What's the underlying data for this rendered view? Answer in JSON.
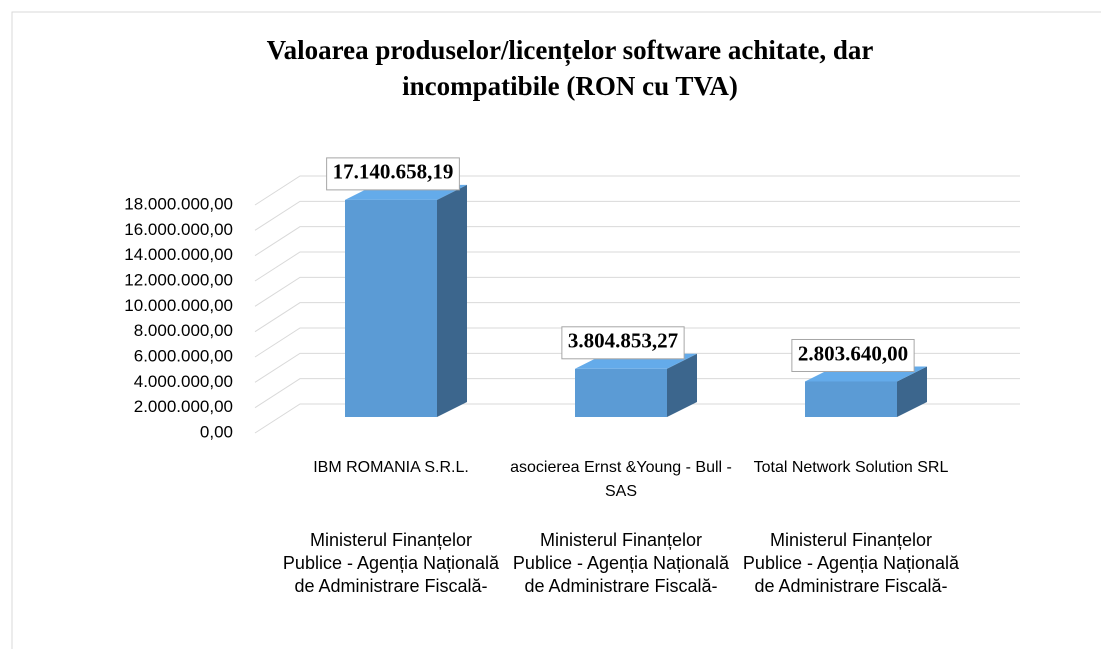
{
  "chart_data": {
    "type": "bar",
    "title": "Valoarea produselor/licențelor software achitate, dar incompatibile (RON cu TVA)",
    "categories": [
      "IBM ROMANIA S.R.L.",
      "asocierea Ernst &Young - Bull - SAS",
      "Total Network Solution SRL"
    ],
    "category_groups": [
      "Ministerul Finanțelor Publice - Agenția Națională de Administrare Fiscală-",
      "Ministerul Finanțelor Publice - Agenția Națională de Administrare Fiscală-",
      "Ministerul Finanțelor Publice - Agenția Națională de Administrare Fiscală-"
    ],
    "values": [
      17140658.19,
      3804853.27,
      2803640.0
    ],
    "value_labels": [
      "17.140.658,19",
      "3.804.853,27",
      "2.803.640,00"
    ],
    "color": "#5b9bd5",
    "ylim": [
      0,
      18000000
    ],
    "yticks": [
      {
        "value": 0,
        "label": "0,00"
      },
      {
        "value": 2000000,
        "label": "2.000.000,00"
      },
      {
        "value": 4000000,
        "label": "4.000.000,00"
      },
      {
        "value": 6000000,
        "label": "6.000.000,00"
      },
      {
        "value": 8000000,
        "label": "8.000.000,00"
      },
      {
        "value": 10000000,
        "label": "10.000.000,00"
      },
      {
        "value": 12000000,
        "label": "12.000.000,00"
      },
      {
        "value": 14000000,
        "label": "14.000.000,00"
      },
      {
        "value": 16000000,
        "label": "16.000.000,00"
      },
      {
        "value": 18000000,
        "label": "18.000.000,00"
      }
    ],
    "grid": true
  }
}
